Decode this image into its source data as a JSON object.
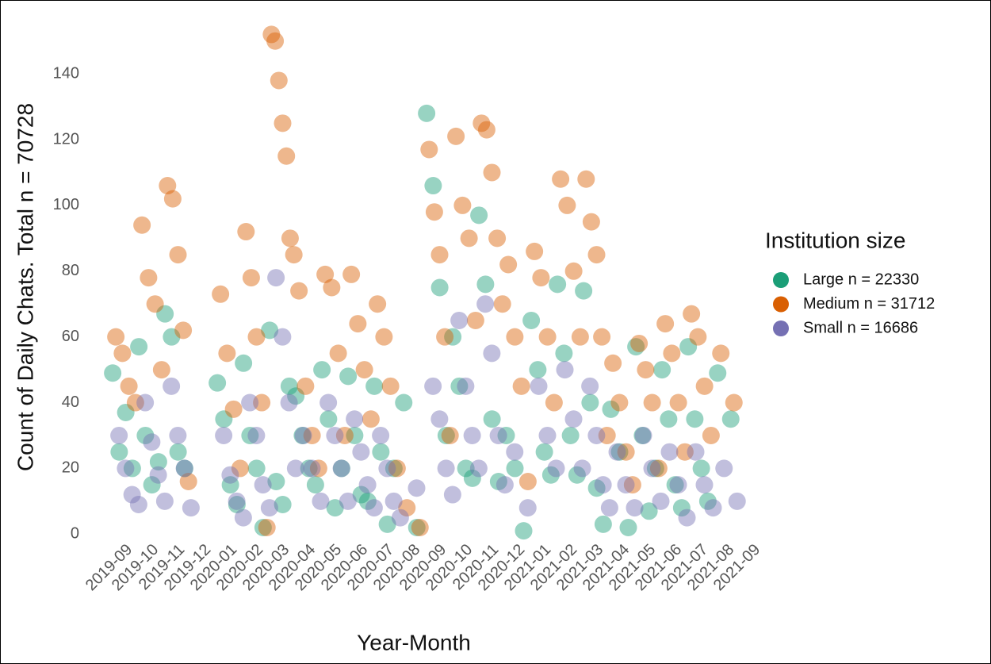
{
  "chart_data": {
    "type": "scatter",
    "x_label": "Year-Month",
    "y_label": "Count of Daily Chats. Total n = 70728",
    "legend_title": "Institution size",
    "legend": "right",
    "grid": false,
    "categories": [
      "2019-09",
      "2019-10",
      "2019-11",
      "2019-12",
      "2020-01",
      "2020-02",
      "2020-03",
      "2020-04",
      "2020-05",
      "2020-06",
      "2020-07",
      "2020-08",
      "2020-09",
      "2020-10",
      "2020-11",
      "2020-12",
      "2021-01",
      "2021-02",
      "2021-03",
      "2021-04",
      "2021-05",
      "2021-06",
      "2021-07",
      "2021-08",
      "2021-09"
    ],
    "ylim": [
      -5,
      155
    ],
    "yticks": [
      0,
      20,
      40,
      60,
      80,
      100,
      120,
      140
    ],
    "series": [
      {
        "name": "Large n = 22330",
        "color": "#1b9e77",
        "x": [
          "2019-09",
          "2019-09",
          "2019-09",
          "2019-09",
          "2019-10",
          "2019-10",
          "2019-10",
          "2019-10",
          "2019-11",
          "2019-11",
          "2019-11",
          "2019-11",
          "2020-01",
          "2020-01",
          "2020-01",
          "2020-01",
          "2020-02",
          "2020-02",
          "2020-02",
          "2020-02",
          "2020-03",
          "2020-03",
          "2020-03",
          "2020-03",
          "2020-04",
          "2020-04",
          "2020-04",
          "2020-04",
          "2020-05",
          "2020-05",
          "2020-05",
          "2020-05",
          "2020-06",
          "2020-06",
          "2020-06",
          "2020-06",
          "2020-07",
          "2020-07",
          "2020-07",
          "2020-07",
          "2020-08",
          "2020-08",
          "2020-09",
          "2020-09",
          "2020-09",
          "2020-09",
          "2020-10",
          "2020-10",
          "2020-10",
          "2020-10",
          "2020-11",
          "2020-11",
          "2020-11",
          "2020-11",
          "2020-12",
          "2020-12",
          "2020-12",
          "2021-01",
          "2021-01",
          "2021-01",
          "2021-01",
          "2021-02",
          "2021-02",
          "2021-02",
          "2021-02",
          "2021-03",
          "2021-03",
          "2021-03",
          "2021-03",
          "2021-04",
          "2021-04",
          "2021-04",
          "2021-05",
          "2021-05",
          "2021-05",
          "2021-05",
          "2021-06",
          "2021-06",
          "2021-06",
          "2021-06",
          "2021-07",
          "2021-07",
          "2021-07",
          "2021-07",
          "2021-08",
          "2021-08"
        ],
        "values": [
          49,
          25,
          37,
          20,
          57,
          30,
          15,
          22,
          67,
          60,
          25,
          20,
          46,
          35,
          15,
          9,
          52,
          30,
          20,
          2,
          62,
          16,
          9,
          45,
          42,
          30,
          20,
          15,
          50,
          35,
          8,
          20,
          48,
          30,
          12,
          10,
          45,
          25,
          3,
          20,
          40,
          2,
          128,
          106,
          75,
          30,
          60,
          45,
          20,
          17,
          97,
          76,
          35,
          16,
          30,
          20,
          1,
          65,
          50,
          25,
          18,
          76,
          55,
          30,
          18,
          74,
          40,
          14,
          3,
          38,
          25,
          2,
          57,
          30,
          7,
          20,
          50,
          35,
          15,
          8,
          57,
          35,
          20,
          10,
          49,
          35
        ]
      },
      {
        "name": "Medium n = 31712",
        "color": "#d95f02",
        "x": [
          "2019-09",
          "2019-09",
          "2019-09",
          "2019-09",
          "2019-10",
          "2019-10",
          "2019-10",
          "2019-10",
          "2019-11",
          "2019-11",
          "2019-11",
          "2019-11",
          "2019-11",
          "2020-01",
          "2020-01",
          "2020-01",
          "2020-01",
          "2020-02",
          "2020-02",
          "2020-02",
          "2020-02",
          "2020-02",
          "2020-03",
          "2020-03",
          "2020-03",
          "2020-03",
          "2020-03",
          "2020-03",
          "2020-03",
          "2020-04",
          "2020-04",
          "2020-04",
          "2020-04",
          "2020-05",
          "2020-05",
          "2020-05",
          "2020-05",
          "2020-06",
          "2020-06",
          "2020-06",
          "2020-06",
          "2020-07",
          "2020-07",
          "2020-07",
          "2020-07",
          "2020-08",
          "2020-08",
          "2020-09",
          "2020-09",
          "2020-09",
          "2020-09",
          "2020-09",
          "2020-10",
          "2020-10",
          "2020-10",
          "2020-10",
          "2020-11",
          "2020-11",
          "2020-11",
          "2020-11",
          "2020-11",
          "2020-12",
          "2020-12",
          "2020-12",
          "2020-12",
          "2021-01",
          "2021-01",
          "2021-01",
          "2021-01",
          "2021-02",
          "2021-02",
          "2021-02",
          "2021-02",
          "2021-03",
          "2021-03",
          "2021-03",
          "2021-03",
          "2021-03",
          "2021-04",
          "2021-04",
          "2021-04",
          "2021-04",
          "2021-05",
          "2021-05",
          "2021-05",
          "2021-05",
          "2021-06",
          "2021-06",
          "2021-06",
          "2021-06",
          "2021-07",
          "2021-07",
          "2021-07",
          "2021-07",
          "2021-08",
          "2021-08"
        ],
        "values": [
          60,
          55,
          45,
          40,
          94,
          78,
          70,
          50,
          106,
          102,
          85,
          62,
          16,
          73,
          55,
          38,
          20,
          92,
          78,
          60,
          40,
          2,
          152,
          150,
          138,
          125,
          115,
          90,
          85,
          74,
          45,
          30,
          20,
          79,
          75,
          55,
          30,
          79,
          64,
          50,
          35,
          70,
          60,
          45,
          20,
          8,
          2,
          117,
          98,
          85,
          60,
          30,
          121,
          100,
          90,
          65,
          125,
          123,
          110,
          90,
          70,
          82,
          60,
          45,
          16,
          86,
          78,
          60,
          40,
          108,
          100,
          80,
          60,
          108,
          95,
          85,
          60,
          30,
          52,
          40,
          25,
          15,
          58,
          50,
          40,
          20,
          64,
          55,
          40,
          25,
          67,
          60,
          45,
          30,
          55,
          40
        ]
      },
      {
        "name": "Small n = 16686",
        "color": "#7570b3",
        "x": [
          "2019-09",
          "2019-09",
          "2019-09",
          "2019-09",
          "2019-10",
          "2019-10",
          "2019-10",
          "2019-10",
          "2019-11",
          "2019-11",
          "2019-11",
          "2019-11",
          "2020-01",
          "2020-01",
          "2020-01",
          "2020-01",
          "2020-02",
          "2020-02",
          "2020-02",
          "2020-02",
          "2020-03",
          "2020-03",
          "2020-03",
          "2020-03",
          "2020-04",
          "2020-04",
          "2020-04",
          "2020-05",
          "2020-05",
          "2020-05",
          "2020-05",
          "2020-06",
          "2020-06",
          "2020-06",
          "2020-06",
          "2020-07",
          "2020-07",
          "2020-07",
          "2020-07",
          "2020-08",
          "2020-09",
          "2020-09",
          "2020-09",
          "2020-09",
          "2020-10",
          "2020-10",
          "2020-10",
          "2020-10",
          "2020-11",
          "2020-11",
          "2020-11",
          "2020-11",
          "2020-12",
          "2020-12",
          "2021-01",
          "2021-01",
          "2021-01",
          "2021-02",
          "2021-02",
          "2021-02",
          "2021-03",
          "2021-03",
          "2021-03",
          "2021-03",
          "2021-04",
          "2021-04",
          "2021-04",
          "2021-05",
          "2021-05",
          "2021-05",
          "2021-06",
          "2021-06",
          "2021-06",
          "2021-07",
          "2021-07",
          "2021-07",
          "2021-08",
          "2021-08"
        ],
        "values": [
          30,
          20,
          12,
          9,
          40,
          28,
          18,
          10,
          45,
          30,
          20,
          8,
          30,
          18,
          10,
          5,
          40,
          30,
          15,
          8,
          78,
          60,
          40,
          20,
          30,
          20,
          10,
          40,
          30,
          20,
          10,
          35,
          25,
          15,
          8,
          30,
          20,
          10,
          5,
          14,
          45,
          35,
          20,
          12,
          65,
          45,
          30,
          20,
          70,
          55,
          30,
          15,
          25,
          8,
          45,
          30,
          20,
          50,
          35,
          20,
          45,
          30,
          15,
          8,
          25,
          15,
          8,
          30,
          20,
          10,
          25,
          15,
          5,
          25,
          15,
          8,
          20,
          10
        ]
      }
    ]
  }
}
